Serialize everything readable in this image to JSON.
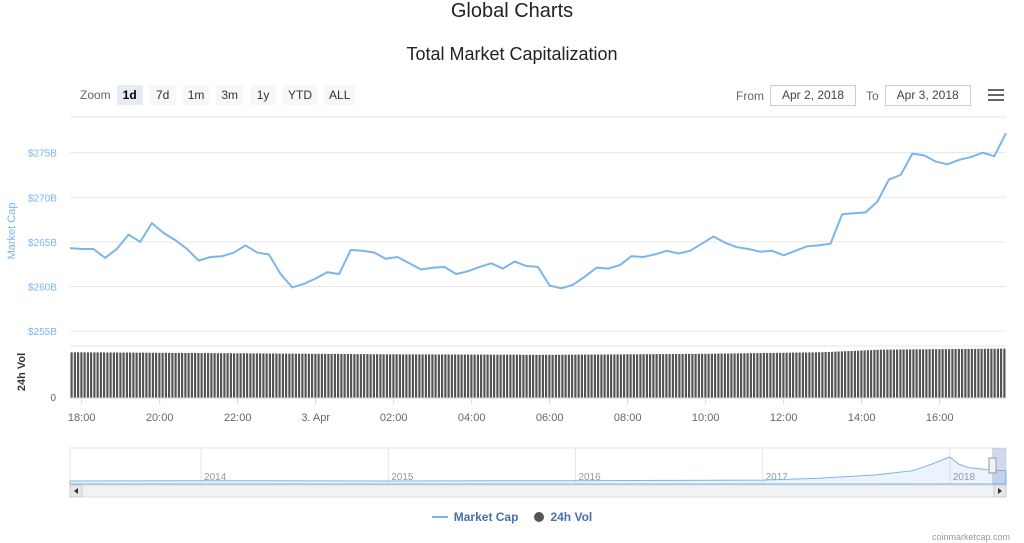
{
  "page_title": "Global Charts",
  "zoom": {
    "label": "Zoom",
    "buttons": [
      "1d",
      "7d",
      "1m",
      "3m",
      "1y",
      "YTD",
      "ALL"
    ],
    "active": "1d"
  },
  "range": {
    "from_label": "From",
    "from_value": "Apr 2, 2018",
    "to_label": "To",
    "to_value": "Apr 3, 2018"
  },
  "icons": {
    "menu": "hamburger-menu-icon",
    "scroll_left": "arrow-left-icon",
    "scroll_right": "arrow-right-icon",
    "navigator_handle": "drag-handle-icon"
  },
  "colors": {
    "market_cap": "#7cb5ec",
    "volume": "#555555",
    "axis_text_y": "#7cb5ec",
    "grid": "#e6e6e6"
  },
  "legend": [
    {
      "label": "Market Cap",
      "symbol": "line",
      "color": "#7cb5ec"
    },
    {
      "label": "24h Vol",
      "symbol": "dot",
      "color": "#555555"
    }
  ],
  "credit": "coinmarketcap.com",
  "chart_data": {
    "type": "line",
    "title": "Total Market Capitalization",
    "ylabel": "Market Cap",
    "ylabel_volume": "24h Vol",
    "x_ticks": [
      "18:00",
      "20:00",
      "22:00",
      "3. Apr",
      "02:00",
      "04:00",
      "06:00",
      "08:00",
      "10:00",
      "12:00",
      "14:00",
      "16:00"
    ],
    "x_tick_hours": [
      0,
      2,
      4,
      6,
      8,
      10,
      12,
      14,
      16,
      18,
      20,
      22
    ],
    "xlim_hours": [
      -0.3,
      23.7
    ],
    "y_ticks": [
      "$275B",
      "$270B",
      "$265B",
      "$260B",
      "$255B"
    ],
    "y_tick_values": [
      275,
      270,
      265,
      260,
      255
    ],
    "ylim": [
      254,
      279
    ],
    "volume_ticks": [
      "0"
    ],
    "grid": true,
    "legend_position": "bottom-center",
    "series": [
      {
        "name": "Market Cap",
        "unit": "billion USD",
        "x_hours": [
          -0.3,
          0.0,
          0.3,
          0.6,
          0.9,
          1.2,
          1.5,
          1.8,
          2.1,
          2.4,
          2.7,
          3.0,
          3.3,
          3.6,
          3.9,
          4.2,
          4.5,
          4.8,
          5.1,
          5.4,
          5.7,
          6.0,
          6.3,
          6.6,
          6.9,
          7.2,
          7.5,
          7.8,
          8.1,
          8.4,
          8.7,
          9.0,
          9.3,
          9.6,
          9.9,
          10.2,
          10.5,
          10.8,
          11.1,
          11.4,
          11.7,
          12.0,
          12.3,
          12.6,
          12.9,
          13.2,
          13.5,
          13.8,
          14.1,
          14.4,
          14.7,
          15.0,
          15.3,
          15.6,
          15.9,
          16.2,
          16.5,
          16.8,
          17.1,
          17.4,
          17.7,
          18.0,
          18.3,
          18.6,
          18.9,
          19.2,
          19.5,
          19.8,
          20.1,
          20.4,
          20.7,
          21.0,
          21.3,
          21.6,
          21.9,
          22.2,
          22.5,
          22.8,
          23.1,
          23.4,
          23.7
        ],
        "values": [
          264.3,
          264.2,
          264.2,
          263.2,
          264.2,
          265.8,
          265.0,
          267.1,
          266.0,
          265.2,
          264.2,
          262.9,
          263.3,
          263.4,
          263.8,
          264.6,
          263.8,
          263.6,
          261.4,
          259.9,
          260.3,
          260.9,
          261.6,
          261.4,
          264.1,
          264.0,
          263.8,
          263.1,
          263.3,
          262.6,
          261.9,
          262.1,
          262.2,
          261.4,
          261.7,
          262.2,
          262.6,
          262.0,
          262.8,
          262.3,
          262.2,
          260.1,
          259.8,
          260.2,
          261.1,
          262.1,
          262.0,
          262.4,
          263.4,
          263.3,
          263.6,
          264.0,
          263.7,
          264.0,
          264.8,
          265.6,
          264.9,
          264.4,
          264.2,
          263.9,
          264.0,
          263.5,
          264.0,
          264.5,
          264.6,
          264.8,
          268.1,
          268.2,
          268.3,
          269.5,
          272.0,
          272.5,
          274.9,
          274.7,
          274.0,
          273.7,
          274.2,
          274.5,
          275.0,
          274.6,
          277.2
        ]
      },
      {
        "name": "24h Vol",
        "unit": "relative bar height (0-1 of volume pane)",
        "x_hours": [
          -0.3,
          4.0,
          8.0,
          12.0,
          16.0,
          19.0,
          20.5,
          23.7
        ],
        "values": [
          0.88,
          0.86,
          0.84,
          0.83,
          0.85,
          0.88,
          0.93,
          0.95
        ]
      }
    ]
  },
  "navigator": {
    "year_labels": [
      "2014",
      "2015",
      "2016",
      "2017",
      "2018"
    ],
    "year_positions": [
      2014,
      2015,
      2016,
      2017,
      2018
    ],
    "xlim_years": [
      2013.3,
      2018.3
    ],
    "series_x_years": [
      2013.3,
      2014.0,
      2015.0,
      2016.0,
      2017.0,
      2017.3,
      2017.6,
      2017.8,
      2017.9,
      2018.0,
      2018.05,
      2018.1,
      2018.2,
      2018.3
    ],
    "series_values": [
      0.03,
      0.04,
      0.03,
      0.04,
      0.06,
      0.12,
      0.22,
      0.35,
      0.55,
      0.78,
      0.55,
      0.45,
      0.38,
      0.35
    ]
  }
}
